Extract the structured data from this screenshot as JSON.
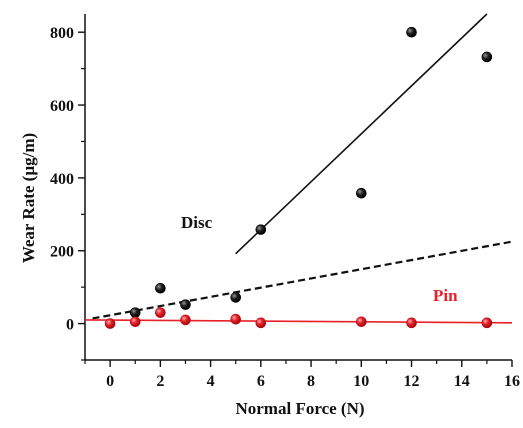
{
  "chart_data": {
    "type": "scatter",
    "xlabel": "Normal Force (N)",
    "ylabel": "Wear Rate (µg/m)",
    "xlim": [
      -1,
      16
    ],
    "ylim": [
      -100,
      850
    ],
    "xticks": [
      0,
      2,
      4,
      6,
      8,
      10,
      12,
      14,
      16
    ],
    "yticks": [
      0,
      200,
      400,
      600,
      800
    ],
    "grid": false,
    "series": [
      {
        "name": "Disc",
        "color": "#111111",
        "x": [
          1,
          2,
          3,
          5,
          6,
          10,
          12,
          15
        ],
        "y": [
          30,
          97,
          52,
          72,
          258,
          358,
          800,
          732
        ]
      },
      {
        "name": "Pin",
        "color": "#e8202a",
        "x": [
          0,
          1,
          2,
          3,
          5,
          6,
          10,
          12,
          15
        ],
        "y": [
          0,
          5,
          30,
          10,
          12,
          2,
          5,
          2,
          2
        ]
      }
    ],
    "fit_lines": [
      {
        "series": "Disc",
        "style": "solid",
        "color": "#111111",
        "x": [
          5,
          15
        ],
        "y": [
          192,
          850
        ]
      },
      {
        "series": "Disc",
        "style": "dashed",
        "color": "#111111",
        "x": [
          -0.7,
          16
        ],
        "y": [
          14,
          225
        ]
      },
      {
        "series": "Pin",
        "style": "solid",
        "color": "#e8202a",
        "x": [
          -1,
          16
        ],
        "y": [
          10,
          2
        ]
      }
    ]
  }
}
